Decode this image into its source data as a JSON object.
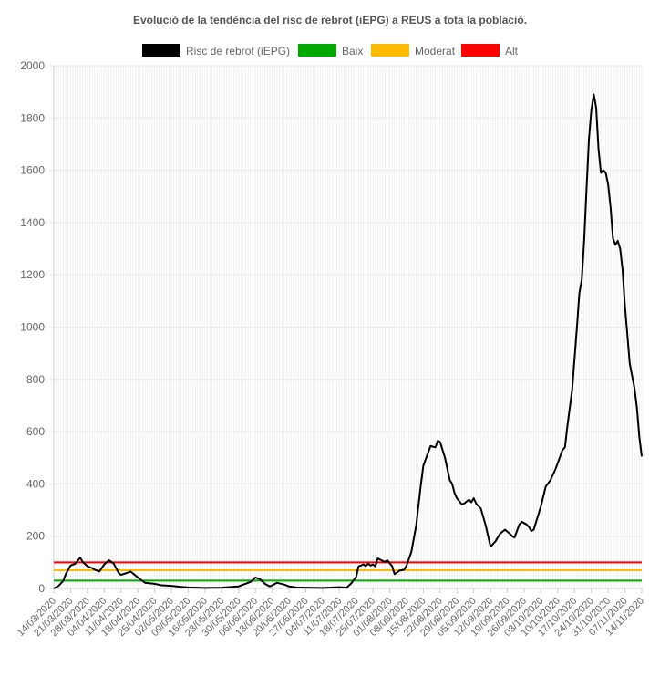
{
  "chart_data": {
    "type": "line",
    "title": "Evolució de la tendència del risc de rebrot (iEPG) a REUS a tota la població.",
    "xlabel": "",
    "ylabel": "",
    "ylim": [
      0,
      2000
    ],
    "yticks": [
      0,
      200,
      400,
      600,
      800,
      1000,
      1200,
      1400,
      1600,
      1800,
      2000
    ],
    "grid": true,
    "legend_position": "top",
    "x_start": "14/03/2020",
    "x_end": "14/11/2020",
    "x_tick_labels": [
      "14/03/2020",
      "21/03/2020",
      "28/03/2020",
      "04/04/2020",
      "11/04/2020",
      "18/04/2020",
      "25/04/2020",
      "02/05/2020",
      "09/05/2020",
      "16/05/2020",
      "23/05/2020",
      "30/05/2020",
      "06/06/2020",
      "13/06/2020",
      "20/06/2020",
      "27/06/2020",
      "04/07/2020",
      "11/07/2020",
      "18/07/2020",
      "25/07/2020",
      "01/08/2020",
      "08/08/2020",
      "15/08/2020",
      "22/08/2020",
      "29/08/2020",
      "05/09/2020",
      "12/09/2020",
      "19/09/2020",
      "26/09/2020",
      "03/10/2020",
      "10/10/2020",
      "17/10/2020",
      "24/10/2020",
      "31/10/2020",
      "07/11/2020",
      "14/11/2020"
    ],
    "series": [
      {
        "name": "Risc de rebrot (iEPG)",
        "color": "#000000",
        "points": [
          [
            "14/03/2020",
            0
          ],
          [
            "16/03/2020",
            10
          ],
          [
            "18/03/2020",
            30
          ],
          [
            "19/03/2020",
            55
          ],
          [
            "21/03/2020",
            88
          ],
          [
            "23/03/2020",
            95
          ],
          [
            "25/03/2020",
            118
          ],
          [
            "26/03/2020",
            102
          ],
          [
            "28/03/2020",
            85
          ],
          [
            "30/03/2020",
            78
          ],
          [
            "31/03/2020",
            72
          ],
          [
            "02/04/2020",
            65
          ],
          [
            "04/04/2020",
            92
          ],
          [
            "06/04/2020",
            108
          ],
          [
            "08/04/2020",
            95
          ],
          [
            "10/04/2020",
            60
          ],
          [
            "11/04/2020",
            52
          ],
          [
            "13/04/2020",
            58
          ],
          [
            "15/04/2020",
            65
          ],
          [
            "17/04/2020",
            50
          ],
          [
            "19/04/2020",
            35
          ],
          [
            "21/04/2020",
            22
          ],
          [
            "25/04/2020",
            18
          ],
          [
            "28/04/2020",
            12
          ],
          [
            "02/05/2020",
            10
          ],
          [
            "06/05/2020",
            6
          ],
          [
            "09/05/2020",
            4
          ],
          [
            "16/05/2020",
            2
          ],
          [
            "23/05/2020",
            3
          ],
          [
            "30/05/2020",
            8
          ],
          [
            "04/06/2020",
            25
          ],
          [
            "06/06/2020",
            42
          ],
          [
            "08/06/2020",
            35
          ],
          [
            "10/06/2020",
            18
          ],
          [
            "12/06/2020",
            8
          ],
          [
            "13/06/2020",
            12
          ],
          [
            "15/06/2020",
            22
          ],
          [
            "18/06/2020",
            15
          ],
          [
            "20/06/2020",
            8
          ],
          [
            "23/06/2020",
            4
          ],
          [
            "27/06/2020",
            3
          ],
          [
            "04/07/2020",
            2
          ],
          [
            "11/07/2020",
            5
          ],
          [
            "14/07/2020",
            3
          ],
          [
            "16/07/2020",
            20
          ],
          [
            "18/07/2020",
            45
          ],
          [
            "19/07/2020",
            85
          ],
          [
            "20/07/2020",
            88
          ],
          [
            "21/07/2020",
            92
          ],
          [
            "22/07/2020",
            86
          ],
          [
            "23/07/2020",
            95
          ],
          [
            "24/07/2020",
            88
          ],
          [
            "25/07/2020",
            92
          ],
          [
            "26/07/2020",
            85
          ],
          [
            "27/07/2020",
            115
          ],
          [
            "28/07/2020",
            110
          ],
          [
            "30/07/2020",
            102
          ],
          [
            "31/07/2020",
            108
          ],
          [
            "02/08/2020",
            85
          ],
          [
            "03/08/2020",
            55
          ],
          [
            "05/08/2020",
            68
          ],
          [
            "07/08/2020",
            72
          ],
          [
            "08/08/2020",
            88
          ],
          [
            "10/08/2020",
            140
          ],
          [
            "12/08/2020",
            240
          ],
          [
            "14/08/2020",
            400
          ],
          [
            "15/08/2020",
            470
          ],
          [
            "17/08/2020",
            520
          ],
          [
            "18/08/2020",
            545
          ],
          [
            "20/08/2020",
            540
          ],
          [
            "21/08/2020",
            565
          ],
          [
            "22/08/2020",
            560
          ],
          [
            "24/08/2020",
            500
          ],
          [
            "26/08/2020",
            415
          ],
          [
            "27/08/2020",
            400
          ],
          [
            "28/08/2020",
            365
          ],
          [
            "29/08/2020",
            345
          ],
          [
            "31/08/2020",
            322
          ],
          [
            "01/09/2020",
            325
          ],
          [
            "03/09/2020",
            340
          ],
          [
            "04/09/2020",
            330
          ],
          [
            "05/09/2020",
            345
          ],
          [
            "06/09/2020",
            325
          ],
          [
            "08/09/2020",
            305
          ],
          [
            "10/09/2020",
            240
          ],
          [
            "11/09/2020",
            200
          ],
          [
            "12/09/2020",
            160
          ],
          [
            "13/09/2020",
            170
          ],
          [
            "14/09/2020",
            180
          ],
          [
            "16/09/2020",
            210
          ],
          [
            "18/09/2020",
            225
          ],
          [
            "20/09/2020",
            210
          ],
          [
            "21/09/2020",
            200
          ],
          [
            "22/09/2020",
            195
          ],
          [
            "24/09/2020",
            245
          ],
          [
            "25/09/2020",
            255
          ],
          [
            "27/09/2020",
            245
          ],
          [
            "28/09/2020",
            235
          ],
          [
            "29/09/2020",
            220
          ],
          [
            "30/09/2020",
            225
          ],
          [
            "02/10/2020",
            285
          ],
          [
            "03/10/2020",
            315
          ],
          [
            "05/10/2020",
            390
          ],
          [
            "07/10/2020",
            415
          ],
          [
            "09/10/2020",
            455
          ],
          [
            "10/10/2020",
            480
          ],
          [
            "12/10/2020",
            530
          ],
          [
            "13/10/2020",
            540
          ],
          [
            "14/10/2020",
            620
          ],
          [
            "16/10/2020",
            760
          ],
          [
            "18/10/2020",
            1000
          ],
          [
            "19/10/2020",
            1130
          ],
          [
            "20/10/2020",
            1180
          ],
          [
            "21/10/2020",
            1330
          ],
          [
            "22/10/2020",
            1530
          ],
          [
            "23/10/2020",
            1720
          ],
          [
            "24/10/2020",
            1830
          ],
          [
            "25/10/2020",
            1890
          ],
          [
            "26/10/2020",
            1840
          ],
          [
            "27/10/2020",
            1680
          ],
          [
            "28/10/2020",
            1590
          ],
          [
            "29/10/2020",
            1600
          ],
          [
            "30/10/2020",
            1590
          ],
          [
            "31/10/2020",
            1545
          ],
          [
            "01/11/2020",
            1460
          ],
          [
            "02/11/2020",
            1340
          ],
          [
            "03/11/2020",
            1315
          ],
          [
            "04/11/2020",
            1330
          ],
          [
            "05/11/2020",
            1300
          ],
          [
            "06/11/2020",
            1220
          ],
          [
            "07/11/2020",
            1080
          ],
          [
            "09/11/2020",
            860
          ],
          [
            "11/11/2020",
            765
          ],
          [
            "12/11/2020",
            690
          ],
          [
            "13/11/2020",
            580
          ],
          [
            "14/11/2020",
            505
          ]
        ]
      },
      {
        "name": "Baix",
        "color": "#00aa00",
        "constant": 30
      },
      {
        "name": "Moderat",
        "color": "#ffbb00",
        "constant": 70
      },
      {
        "name": "Alt",
        "color": "#ff0000",
        "constant": 100
      }
    ]
  }
}
